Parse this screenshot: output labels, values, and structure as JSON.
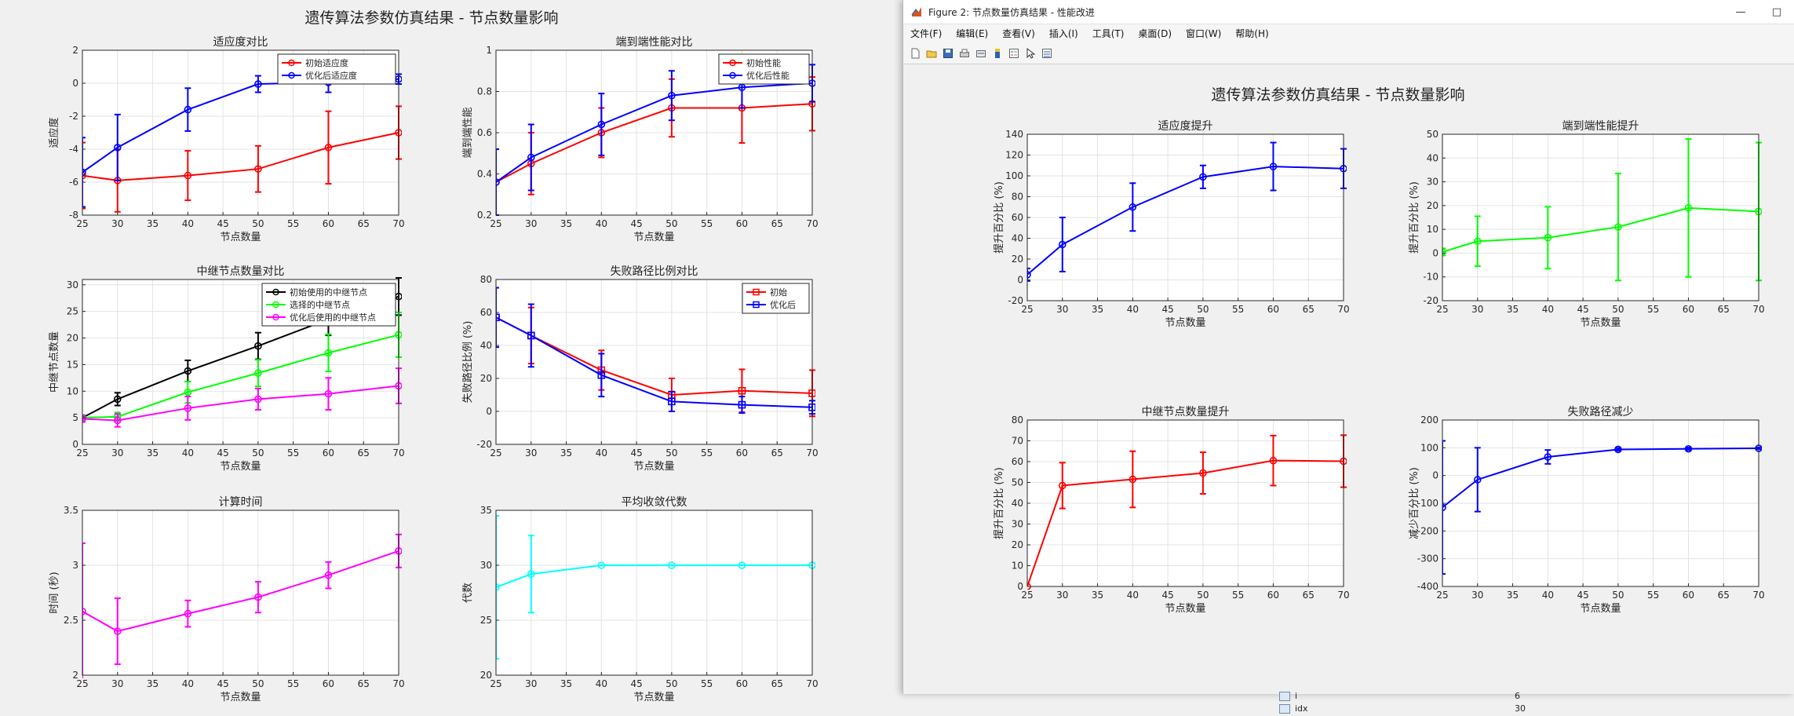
{
  "fig1": {
    "suptitle": "遗传算法参数仿真结果 - 节点数量影响",
    "subplots": [
      {
        "title": "适应度对比",
        "ylabel": "适应度",
        "xlabel": "节点数量"
      },
      {
        "title": "端到端性能对比",
        "ylabel": "端到端性能",
        "xlabel": "节点数量"
      },
      {
        "title": "中继节点数量对比",
        "ylabel": "中继节点数量",
        "xlabel": "节点数量"
      },
      {
        "title": "失败路径比例对比",
        "ylabel": "失败路径比例 (%)",
        "xlabel": "节点数量"
      },
      {
        "title": "计算时间",
        "ylabel": "时间 (秒)",
        "xlabel": "节点数量"
      },
      {
        "title": "平均收敛代数",
        "ylabel": "代数",
        "xlabel": "节点数量"
      }
    ]
  },
  "fig2": {
    "window_title": "Figure 2: 节点数量仿真结果 - 性能改进",
    "window_controls": [
      "—",
      "□"
    ],
    "menu": [
      "文件(F)",
      "编辑(E)",
      "查看(V)",
      "插入(I)",
      "工具(T)",
      "桌面(D)",
      "窗口(W)",
      "帮助(H)"
    ],
    "toolbar_icons": [
      "new-file-icon",
      "open-folder-icon",
      "save-icon",
      "print-icon",
      "link-icon",
      "colorbar-icon",
      "legend-icon",
      "pointer-icon",
      "property-inspector-icon"
    ],
    "suptitle": "遗传算法参数仿真结果 - 节点数量影响",
    "subplots": [
      {
        "title": "适应度提升",
        "ylabel": "提升百分比 (%)",
        "xlabel": "节点数量"
      },
      {
        "title": "端到端性能提升",
        "ylabel": "提升百分比 (%)",
        "xlabel": "节点数量"
      },
      {
        "title": "中继节点数量提升",
        "ylabel": "提升百分比 (%)",
        "xlabel": "节点数量"
      },
      {
        "title": "失败路径减少",
        "ylabel": "减少百分比 (%)",
        "xlabel": "节点数量"
      }
    ]
  },
  "workspace": {
    "rows": [
      {
        "name": "i",
        "value": "6"
      },
      {
        "name": "idx",
        "value": "30"
      }
    ]
  },
  "chart_data": [
    {
      "figure": 1,
      "type": "line",
      "title": "适应度对比",
      "xlabel": "节点数量",
      "ylabel": "适应度",
      "x": [
        25,
        30,
        40,
        50,
        60,
        70
      ],
      "xlim": [
        25,
        70
      ],
      "xticks": [
        25,
        30,
        35,
        40,
        45,
        50,
        55,
        60,
        65,
        70
      ],
      "ylim": [
        -8,
        2
      ],
      "yticks": [
        -8,
        -6,
        -4,
        -2,
        0,
        2
      ],
      "grid": true,
      "legend_position": "top-right",
      "series": [
        {
          "name": "初始适应度",
          "color": "#ff0000",
          "marker": "o",
          "values": [
            -5.6,
            -5.9,
            -5.6,
            -5.2,
            -3.9,
            -3.0
          ],
          "err": [
            2.0,
            1.9,
            1.5,
            1.4,
            2.2,
            1.6
          ]
        },
        {
          "name": "优化后适应度",
          "color": "#0000ff",
          "marker": "o",
          "values": [
            -5.4,
            -3.9,
            -1.6,
            -0.05,
            0.05,
            0.25
          ],
          "err": [
            2.1,
            2.0,
            1.3,
            0.5,
            0.6,
            0.3
          ]
        }
      ]
    },
    {
      "figure": 1,
      "type": "line",
      "title": "端到端性能对比",
      "xlabel": "节点数量",
      "ylabel": "端到端性能",
      "x": [
        25,
        30,
        40,
        50,
        60,
        70
      ],
      "xlim": [
        25,
        70
      ],
      "xticks": [
        25,
        30,
        35,
        40,
        45,
        50,
        55,
        60,
        65,
        70
      ],
      "ylim": [
        0.2,
        1
      ],
      "yticks": [
        0.2,
        0.4,
        0.6,
        0.8,
        1
      ],
      "grid": true,
      "legend_position": "top-right",
      "series": [
        {
          "name": "初始性能",
          "color": "#ff0000",
          "marker": "o",
          "values": [
            0.36,
            0.45,
            0.6,
            0.72,
            0.72,
            0.74
          ],
          "err": [
            0.16,
            0.15,
            0.12,
            0.14,
            0.17,
            0.13
          ]
        },
        {
          "name": "优化后性能",
          "color": "#0000ff",
          "marker": "o",
          "values": [
            0.36,
            0.48,
            0.64,
            0.78,
            0.82,
            0.84
          ],
          "err": [
            0.16,
            0.16,
            0.15,
            0.12,
            0.1,
            0.09
          ]
        }
      ]
    },
    {
      "figure": 1,
      "type": "line",
      "title": "中继节点数量对比",
      "xlabel": "节点数量",
      "ylabel": "中继节点数量",
      "x": [
        25,
        30,
        40,
        50,
        60,
        70
      ],
      "xlim": [
        25,
        70
      ],
      "xticks": [
        25,
        30,
        35,
        40,
        45,
        50,
        55,
        60,
        65,
        70
      ],
      "ylim": [
        0,
        31
      ],
      "yticks": [
        0,
        5,
        10,
        15,
        20,
        25,
        30
      ],
      "grid": true,
      "legend_position": "top-right",
      "series": [
        {
          "name": "初始使用的中继节点",
          "color": "#000000",
          "marker": "o",
          "values": [
            5,
            8.5,
            13.8,
            18.5,
            23.5,
            27.8
          ],
          "err": [
            0.5,
            1.2,
            2.0,
            2.5,
            3.0,
            3.5
          ]
        },
        {
          "name": "选择的中继节点",
          "color": "#00ff00",
          "marker": "o",
          "values": [
            5,
            5.2,
            9.8,
            13.4,
            17.2,
            20.6
          ],
          "err": [
            0.5,
            0.8,
            2.0,
            2.5,
            3.5,
            4.2
          ]
        },
        {
          "name": "优化后使用的中继节点",
          "color": "#ff00ff",
          "marker": "o",
          "values": [
            4.8,
            4.5,
            6.8,
            8.5,
            9.5,
            11.0
          ],
          "err": [
            0.6,
            1.2,
            2.2,
            2.0,
            3.0,
            3.3
          ]
        }
      ]
    },
    {
      "figure": 1,
      "type": "line",
      "title": "失败路径比例对比",
      "xlabel": "节点数量",
      "ylabel": "失败路径比例 (%)",
      "x": [
        25,
        30,
        40,
        50,
        60,
        70
      ],
      "xlim": [
        25,
        70
      ],
      "xticks": [
        25,
        30,
        35,
        40,
        45,
        50,
        55,
        60,
        65,
        70
      ],
      "ylim": [
        -20,
        80
      ],
      "yticks": [
        -20,
        0,
        20,
        40,
        60,
        80
      ],
      "grid": true,
      "legend_position": "top-right",
      "series": [
        {
          "name": "初始",
          "color": "#ff0000",
          "marker": "s",
          "values": [
            57,
            46,
            25,
            10,
            12.5,
            11
          ],
          "err": [
            18,
            17,
            12,
            10,
            13,
            14
          ]
        },
        {
          "name": "优化后",
          "color": "#0000ff",
          "marker": "s",
          "values": [
            57,
            46,
            22,
            6,
            4,
            2.5
          ],
          "err": [
            18,
            19,
            13,
            6,
            5,
            4
          ]
        }
      ]
    },
    {
      "figure": 1,
      "type": "line",
      "title": "计算时间",
      "xlabel": "节点数量",
      "ylabel": "时间 (秒)",
      "x": [
        25,
        30,
        40,
        50,
        60,
        70
      ],
      "xlim": [
        25,
        70
      ],
      "xticks": [
        25,
        30,
        35,
        40,
        45,
        50,
        55,
        60,
        65,
        70
      ],
      "ylim": [
        2,
        3.5
      ],
      "yticks": [
        2,
        2.5,
        3,
        3.5
      ],
      "grid": true,
      "series": [
        {
          "color": "#ff00ff",
          "marker": "o",
          "values": [
            2.58,
            2.4,
            2.56,
            2.71,
            2.91,
            3.13
          ],
          "err": [
            0.62,
            0.3,
            0.12,
            0.14,
            0.12,
            0.15
          ]
        }
      ]
    },
    {
      "figure": 1,
      "type": "line",
      "title": "平均收敛代数",
      "xlabel": "节点数量",
      "ylabel": "代数",
      "x": [
        25,
        30,
        40,
        50,
        60,
        70
      ],
      "xlim": [
        25,
        70
      ],
      "xticks": [
        25,
        30,
        35,
        40,
        45,
        50,
        55,
        60,
        65,
        70
      ],
      "ylim": [
        20,
        35
      ],
      "yticks": [
        20,
        25,
        30,
        35
      ],
      "grid": true,
      "series": [
        {
          "color": "#00ffff",
          "marker": "o",
          "values": [
            28,
            29.2,
            30,
            30,
            30,
            30
          ],
          "err": [
            6.5,
            3.5,
            0,
            0,
            0,
            0
          ]
        }
      ]
    },
    {
      "figure": 2,
      "type": "line",
      "title": "适应度提升",
      "xlabel": "节点数量",
      "ylabel": "提升百分比 (%)",
      "x": [
        25,
        30,
        40,
        50,
        60,
        70
      ],
      "xlim": [
        25,
        70
      ],
      "xticks": [
        25,
        30,
        35,
        40,
        45,
        50,
        55,
        60,
        65,
        70
      ],
      "ylim": [
        -20,
        140
      ],
      "yticks": [
        -20,
        0,
        20,
        40,
        60,
        80,
        100,
        120,
        140
      ],
      "grid": true,
      "series": [
        {
          "color": "#0000ff",
          "marker": "o",
          "values": [
            5,
            34,
            70,
            99,
            109,
            107
          ],
          "err": [
            6,
            26,
            23,
            11,
            23,
            19
          ]
        }
      ]
    },
    {
      "figure": 2,
      "type": "line",
      "title": "端到端性能提升",
      "xlabel": "节点数量",
      "ylabel": "提升百分比 (%)",
      "x": [
        25,
        30,
        40,
        50,
        60,
        70
      ],
      "xlim": [
        25,
        70
      ],
      "xticks": [
        25,
        30,
        35,
        40,
        45,
        50,
        55,
        60,
        65,
        70
      ],
      "ylim": [
        -20,
        50
      ],
      "yticks": [
        -20,
        -10,
        0,
        10,
        20,
        30,
        40,
        50
      ],
      "grid": true,
      "series": [
        {
          "color": "#00ff00",
          "marker": "o",
          "values": [
            0.5,
            5,
            6.5,
            11,
            19,
            17.5
          ],
          "err": [
            1.5,
            10.5,
            13,
            22.5,
            29,
            29
          ]
        }
      ]
    },
    {
      "figure": 2,
      "type": "line",
      "title": "中继节点数量提升",
      "xlabel": "节点数量",
      "ylabel": "提升百分比 (%)",
      "x": [
        25,
        30,
        40,
        50,
        60,
        70
      ],
      "xlim": [
        25,
        70
      ],
      "xticks": [
        25,
        30,
        35,
        40,
        45,
        50,
        55,
        60,
        65,
        70
      ],
      "ylim": [
        0,
        80
      ],
      "yticks": [
        0,
        10,
        20,
        30,
        40,
        50,
        60,
        70,
        80
      ],
      "grid": true,
      "series": [
        {
          "color": "#ff0000",
          "marker": "o",
          "values": [
            0,
            48.5,
            51.5,
            54.5,
            60.5,
            60.2
          ],
          "err": [
            0,
            11,
            13.5,
            10,
            12,
            12.5
          ]
        }
      ]
    },
    {
      "figure": 2,
      "type": "line",
      "title": "失败路径减少",
      "xlabel": "节点数量",
      "ylabel": "减少百分比 (%)",
      "x": [
        25,
        30,
        40,
        50,
        60,
        70
      ],
      "xlim": [
        25,
        70
      ],
      "xticks": [
        25,
        30,
        35,
        40,
        45,
        50,
        55,
        60,
        65,
        70
      ],
      "ylim": [
        -400,
        200
      ],
      "yticks": [
        -400,
        -300,
        -200,
        -100,
        0,
        100,
        200
      ],
      "grid": true,
      "series": [
        {
          "color": "#0000ff",
          "marker": "o",
          "values": [
            -115,
            -15,
            67,
            94,
            96,
            98
          ],
          "err": [
            240,
            115,
            25,
            5,
            5,
            3
          ]
        }
      ]
    }
  ]
}
